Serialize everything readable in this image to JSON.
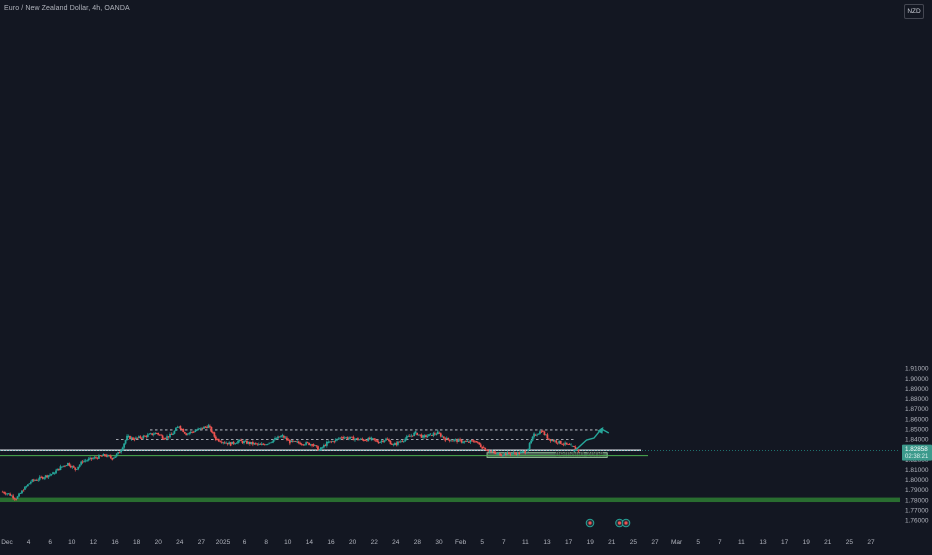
{
  "header": {
    "symbol_title": "Euro / New Zealand Dollar, 4h, OANDA",
    "currency": "NZD"
  },
  "colors": {
    "background": "#131722",
    "up_candle": "#26a69a",
    "down_candle": "#ef5350",
    "axis_text": "#b2b5be",
    "resistance_line": "#e0e3eb",
    "support_line": "#4caf50",
    "zone_fill": "#2e7d32",
    "projection_arrow": "#26a69a",
    "price_tag": "#3c9a8c"
  },
  "price_axis": {
    "ticks": [
      "1.91000",
      "1.90000",
      "1.89000",
      "1.88000",
      "1.87000",
      "1.86000",
      "1.85000",
      "1.84000",
      "1.83000",
      "1.82000",
      "1.81000",
      "1.80000",
      "1.79000",
      "1.78000",
      "1.77000",
      "1.76000"
    ]
  },
  "current_price": {
    "value": "1.82858",
    "countdown": "02:38:21",
    "numeric": 1.82858
  },
  "time_axis": {
    "labels": [
      "Dec",
      "4",
      "6",
      "10",
      "12",
      "16",
      "18",
      "20",
      "24",
      "27",
      "2025",
      "6",
      "8",
      "10",
      "14",
      "16",
      "20",
      "22",
      "24",
      "28",
      "30",
      "Feb",
      "5",
      "7",
      "11",
      "13",
      "17",
      "19",
      "21",
      "25",
      "27",
      "Mar",
      "5",
      "7",
      "11",
      "13",
      "17",
      "19",
      "21",
      "25",
      "27"
    ]
  },
  "annotations": {
    "demand_zone_label": "demand zone",
    "event_markers": [
      "event-marker-1",
      "event-marker-2",
      "event-marker-3"
    ]
  },
  "chart_data": {
    "type": "candlestick",
    "symbol": "EURNZD",
    "timeframe": "4h",
    "ylim": [
      1.7535,
      1.9155
    ],
    "series_segments": [
      {
        "from_x": "Dec 2",
        "to_x": "Dec 3",
        "start": 1.788,
        "end": 1.786
      },
      {
        "from_x": "Dec 3",
        "to_x": "Dec 4",
        "start": 1.786,
        "end": 1.781
      },
      {
        "from_x": "Dec 4",
        "to_x": "Dec 5",
        "start": 1.781,
        "end": 1.79
      },
      {
        "from_x": "Dec 5",
        "to_x": "Dec 6",
        "start": 1.79,
        "end": 1.798
      },
      {
        "from_x": "Dec 6",
        "to_x": "Dec 9",
        "start": 1.798,
        "end": 1.806
      },
      {
        "from_x": "Dec 9",
        "to_x": "Dec 10",
        "start": 1.806,
        "end": 1.812
      },
      {
        "from_x": "Dec 10",
        "to_x": "Dec 11",
        "start": 1.812,
        "end": 1.816
      },
      {
        "from_x": "Dec 11",
        "to_x": "Dec 12",
        "start": 1.816,
        "end": 1.81
      },
      {
        "from_x": "Dec 12",
        "to_x": "Dec 13",
        "start": 1.81,
        "end": 1.818
      },
      {
        "from_x": "Dec 13",
        "to_x": "Dec 16",
        "start": 1.818,
        "end": 1.824
      },
      {
        "from_x": "Dec 16",
        "to_x": "Dec 17",
        "start": 1.824,
        "end": 1.821
      },
      {
        "from_x": "Dec 17",
        "to_x": "Dec 18",
        "start": 1.821,
        "end": 1.827
      },
      {
        "from_x": "Dec 18",
        "to_x": "Dec 19",
        "start": 1.827,
        "end": 1.842
      },
      {
        "from_x": "Dec 19",
        "to_x": "Dec 20",
        "start": 1.842,
        "end": 1.84
      },
      {
        "from_x": "Dec 20",
        "to_x": "Dec 23",
        "start": 1.84,
        "end": 1.846
      },
      {
        "from_x": "Dec 23",
        "to_x": "Dec 24",
        "start": 1.846,
        "end": 1.841
      },
      {
        "from_x": "Dec 24",
        "to_x": "Dec 25",
        "start": 1.841,
        "end": 1.844
      },
      {
        "from_x": "Dec 25",
        "to_x": "Dec 26",
        "start": 1.844,
        "end": 1.853
      },
      {
        "from_x": "Dec 26",
        "to_x": "Dec 27",
        "start": 1.853,
        "end": 1.845
      },
      {
        "from_x": "Dec 27",
        "to_x": "Dec 30",
        "start": 1.845,
        "end": 1.853
      },
      {
        "from_x": "Dec 30",
        "to_x": "Dec 31",
        "start": 1.853,
        "end": 1.84
      },
      {
        "from_x": "Dec 31",
        "to_x": "Jan 2",
        "start": 1.84,
        "end": 1.835
      },
      {
        "from_x": "Jan 2",
        "to_x": "Jan 3",
        "start": 1.835,
        "end": 1.838
      },
      {
        "from_x": "Jan 3",
        "to_x": "Jan 6",
        "start": 1.838,
        "end": 1.834
      },
      {
        "from_x": "Jan 6",
        "to_x": "Jan 7",
        "start": 1.834,
        "end": 1.836
      },
      {
        "from_x": "Jan 7",
        "to_x": "Jan 8",
        "start": 1.836,
        "end": 1.84
      },
      {
        "from_x": "Jan 8",
        "to_x": "Jan 9",
        "start": 1.84,
        "end": 1.843
      },
      {
        "from_x": "Jan 9",
        "to_x": "Jan 10",
        "start": 1.843,
        "end": 1.837
      },
      {
        "from_x": "Jan 10",
        "to_x": "Jan 13",
        "start": 1.837,
        "end": 1.835
      },
      {
        "from_x": "Jan 13",
        "to_x": "Jan 14",
        "start": 1.835,
        "end": 1.829
      },
      {
        "from_x": "Jan 14",
        "to_x": "Jan 15",
        "start": 1.829,
        "end": 1.836
      },
      {
        "from_x": "Jan 15",
        "to_x": "Jan 16",
        "start": 1.836,
        "end": 1.838
      },
      {
        "from_x": "Jan 16",
        "to_x": "Jan 17",
        "start": 1.838,
        "end": 1.842
      },
      {
        "from_x": "Jan 17",
        "to_x": "Jan 20",
        "start": 1.842,
        "end": 1.839
      },
      {
        "from_x": "Jan 20",
        "to_x": "Jan 21",
        "start": 1.839,
        "end": 1.84
      },
      {
        "from_x": "Jan 21",
        "to_x": "Jan 22",
        "start": 1.84,
        "end": 1.837
      },
      {
        "from_x": "Jan 22",
        "to_x": "Jan 23",
        "start": 1.837,
        "end": 1.84
      },
      {
        "from_x": "Jan 23",
        "to_x": "Jan 24",
        "start": 1.84,
        "end": 1.834
      },
      {
        "from_x": "Jan 24",
        "to_x": "Jan 27",
        "start": 1.834,
        "end": 1.846
      },
      {
        "from_x": "Jan 27",
        "to_x": "Jan 28",
        "start": 1.846,
        "end": 1.842
      },
      {
        "from_x": "Jan 28",
        "to_x": "Jan 29",
        "start": 1.842,
        "end": 1.844
      },
      {
        "from_x": "Jan 29",
        "to_x": "Jan 30",
        "start": 1.844,
        "end": 1.846
      },
      {
        "from_x": "Jan 30",
        "to_x": "Jan 31",
        "start": 1.846,
        "end": 1.84
      },
      {
        "from_x": "Jan 31",
        "to_x": "Feb 3",
        "start": 1.84,
        "end": 1.837
      },
      {
        "from_x": "Feb 3",
        "to_x": "Feb 4",
        "start": 1.837,
        "end": 1.838
      },
      {
        "from_x": "Feb 4",
        "to_x": "Feb 5",
        "start": 1.838,
        "end": 1.832
      },
      {
        "from_x": "Feb 5",
        "to_x": "Feb 6",
        "start": 1.832,
        "end": 1.828
      },
      {
        "from_x": "Feb 6",
        "to_x": "Feb 7",
        "start": 1.828,
        "end": 1.825
      },
      {
        "from_x": "Feb 7",
        "to_x": "Feb 10",
        "start": 1.825,
        "end": 1.826
      },
      {
        "from_x": "Feb 10",
        "to_x": "Feb 11",
        "start": 1.826,
        "end": 1.828
      },
      {
        "from_x": "Feb 11",
        "to_x": "Feb 12",
        "start": 1.828,
        "end": 1.844
      },
      {
        "from_x": "Feb 12",
        "to_x": "Feb 13",
        "start": 1.844,
        "end": 1.848
      },
      {
        "from_x": "Feb 13",
        "to_x": "Feb 14",
        "start": 1.848,
        "end": 1.84
      },
      {
        "from_x": "Feb 14",
        "to_x": "Feb 17",
        "start": 1.84,
        "end": 1.833
      },
      {
        "from_x": "Feb 17",
        "to_x": "Feb 18",
        "start": 1.833,
        "end": 1.8286
      }
    ],
    "levels": {
      "range_high_dashed": 1.849,
      "range_mid_dashed": 1.8395,
      "resistance_white": 1.829,
      "support_green": 1.8236,
      "demand_zone": [
        1.8218,
        1.8265
      ],
      "major_support_zone": [
        1.7778,
        1.7822
      ]
    },
    "projection_path": [
      {
        "x": "Feb 17",
        "y": 1.8275
      },
      {
        "x": "Feb 19",
        "y": 1.839
      },
      {
        "x": "Feb 20",
        "y": 1.841
      },
      {
        "x": "Feb 21",
        "y": 1.85
      },
      {
        "x": "Feb 22",
        "y": 1.846
      }
    ]
  }
}
